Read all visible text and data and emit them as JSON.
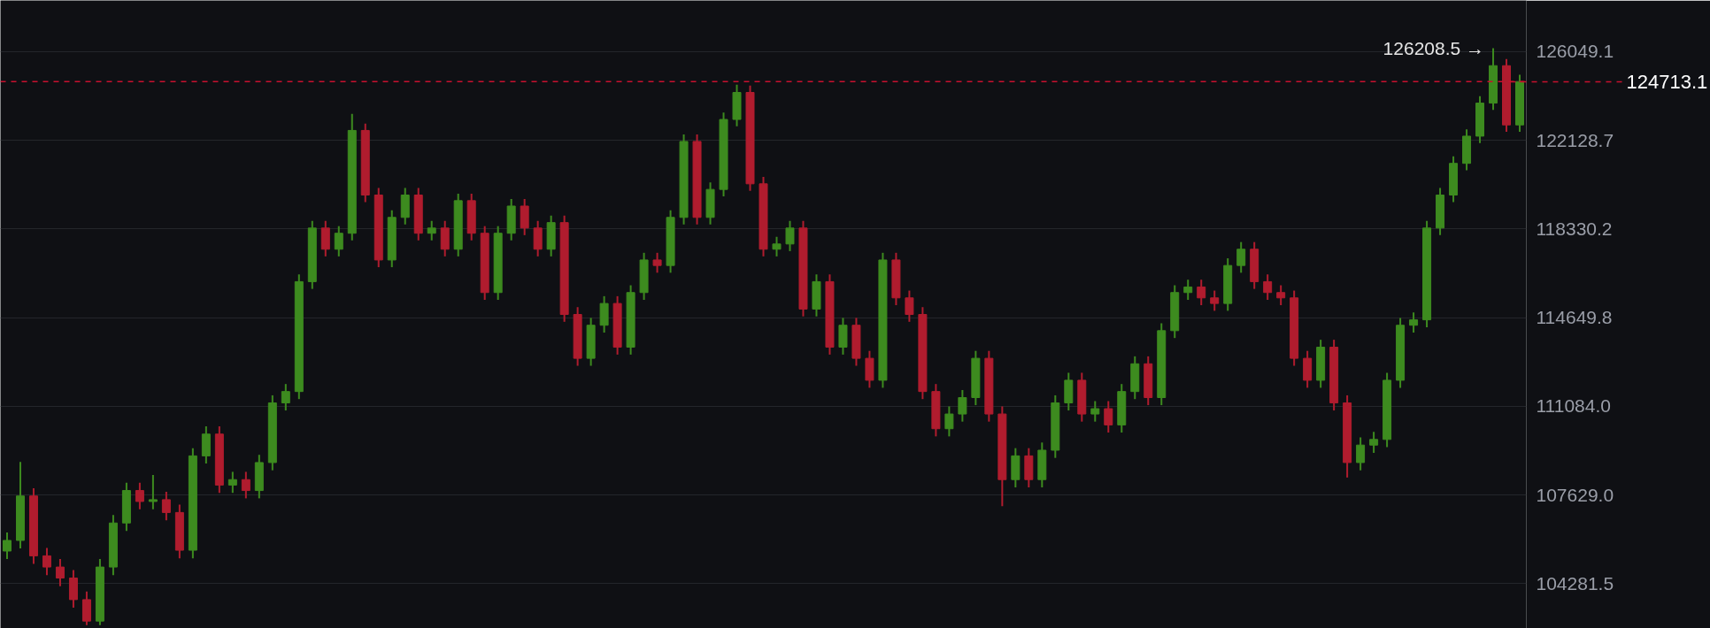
{
  "chart_data": {
    "type": "candlestick",
    "log": true,
    "grid": "y",
    "tick_labels": "y",
    "ylim": [
      102630,
      128370
    ],
    "yticks": [
      104281.5,
      {
        "value": 107629,
        "label": "107629.0"
      },
      {
        "value": 111084,
        "label": "111084.0"
      },
      114649.8,
      118330.2,
      122128.7,
      126049.1
    ],
    "ref_lines": [
      {
        "axis": "y",
        "value": 124713.1,
        "label": "124713.1",
        "color": "#c8102e",
        "line_style": "dashed"
      }
    ],
    "annotations": [
      "126208.5 →"
    ],
    "categories": [
      null,
      null,
      null,
      null,
      null,
      null,
      null,
      null,
      null,
      null,
      null,
      null,
      null,
      null,
      null,
      null,
      null,
      null,
      null,
      null,
      null,
      null,
      null,
      null,
      null,
      null,
      null,
      null,
      null,
      null,
      null,
      null,
      null,
      null,
      null,
      null,
      null,
      null,
      null,
      null,
      null,
      null,
      null,
      null,
      null,
      null,
      null,
      null,
      null,
      null,
      null,
      null,
      null,
      null,
      null,
      null,
      null,
      null,
      null,
      null,
      null,
      null,
      null,
      null,
      null,
      null,
      null,
      null,
      null,
      null,
      null,
      null,
      null,
      null,
      null,
      null,
      null,
      null,
      null,
      null,
      null,
      null,
      null,
      null,
      null,
      null,
      null,
      null,
      null,
      null,
      null,
      null,
      null,
      null,
      null,
      null,
      null,
      null,
      null,
      null,
      null,
      null,
      null,
      null,
      null,
      null,
      null,
      null,
      null,
      null,
      null,
      null,
      null,
      null,
      null
    ],
    "ohlc": [
      [
        105500,
        106200,
        105200,
        105900
      ],
      [
        105900,
        108900,
        105600,
        107590
      ],
      [
        107590,
        107890,
        105020,
        105320
      ],
      [
        105320,
        105620,
        104600,
        104900
      ],
      [
        104900,
        105200,
        104190,
        104490
      ],
      [
        104490,
        104790,
        103390,
        103690
      ],
      [
        103690,
        103990,
        102750,
        102900
      ],
      [
        102900,
        105200,
        102750,
        104900
      ],
      [
        104900,
        106860,
        104600,
        106560
      ],
      [
        106560,
        108100,
        106260,
        107800
      ],
      [
        107800,
        108100,
        107080,
        107380
      ],
      [
        107380,
        108400,
        107080,
        107450
      ],
      [
        107450,
        107750,
        106660,
        106960
      ],
      [
        106960,
        107260,
        105230,
        105530
      ],
      [
        105530,
        109440,
        105230,
        109140
      ],
      [
        109140,
        110290,
        108840,
        109990
      ],
      [
        109990,
        110290,
        107710,
        108010
      ],
      [
        108010,
        108520,
        107710,
        108220
      ],
      [
        108220,
        108520,
        107500,
        107800
      ],
      [
        107800,
        109180,
        107500,
        108880
      ],
      [
        108880,
        111520,
        108580,
        111220
      ],
      [
        111220,
        111970,
        110920,
        111670
      ],
      [
        111670,
        116430,
        111370,
        116130
      ],
      [
        116130,
        118670,
        115830,
        118370
      ],
      [
        118370,
        118670,
        117180,
        117480
      ],
      [
        117480,
        118450,
        117180,
        118150
      ],
      [
        118150,
        123280,
        117850,
        122560
      ],
      [
        122560,
        122860,
        119470,
        119770
      ],
      [
        119770,
        120070,
        116730,
        117030
      ],
      [
        117030,
        119120,
        116730,
        118820
      ],
      [
        118820,
        120070,
        118520,
        119770
      ],
      [
        119770,
        120070,
        117850,
        118150
      ],
      [
        118150,
        118670,
        117850,
        118370
      ],
      [
        118370,
        118670,
        117180,
        117480
      ],
      [
        117480,
        119830,
        117180,
        119530
      ],
      [
        119530,
        119830,
        117850,
        118150
      ],
      [
        118150,
        118450,
        115380,
        115680
      ],
      [
        115680,
        118450,
        115380,
        118150
      ],
      [
        118150,
        119600,
        117850,
        119300
      ],
      [
        119300,
        119600,
        118070,
        118370
      ],
      [
        118370,
        118670,
        117180,
        117480
      ],
      [
        117480,
        118900,
        117180,
        118600
      ],
      [
        118600,
        118900,
        114480,
        114780
      ],
      [
        114780,
        115080,
        112700,
        113000
      ],
      [
        113000,
        114640,
        112700,
        114340
      ],
      [
        114340,
        115530,
        114040,
        115230
      ],
      [
        115230,
        115530,
        113150,
        113450
      ],
      [
        113450,
        115980,
        113150,
        115680
      ],
      [
        115680,
        117330,
        115380,
        117030
      ],
      [
        117030,
        117330,
        116500,
        116800
      ],
      [
        116800,
        119120,
        116500,
        118820
      ],
      [
        118820,
        122380,
        118520,
        122080
      ],
      [
        122080,
        122380,
        118520,
        118820
      ],
      [
        118820,
        120310,
        118520,
        120010
      ],
      [
        120010,
        123340,
        119710,
        123040
      ],
      [
        123040,
        124570,
        122740,
        124230
      ],
      [
        124230,
        124530,
        119950,
        120250
      ],
      [
        120250,
        120550,
        117180,
        117480
      ],
      [
        117480,
        118000,
        117180,
        117700
      ],
      [
        117700,
        118670,
        117400,
        118370
      ],
      [
        118370,
        118670,
        114700,
        115000
      ],
      [
        115000,
        116430,
        114700,
        116130
      ],
      [
        116130,
        116430,
        113150,
        113450
      ],
      [
        113450,
        114640,
        113150,
        114340
      ],
      [
        114340,
        114640,
        112700,
        113000
      ],
      [
        113000,
        113300,
        111820,
        112120
      ],
      [
        112120,
        117330,
        111820,
        117030
      ],
      [
        117030,
        117330,
        115160,
        115460
      ],
      [
        115460,
        115760,
        114480,
        114780
      ],
      [
        114780,
        115080,
        111370,
        111670
      ],
      [
        111670,
        111970,
        109900,
        110200
      ],
      [
        110200,
        111080,
        109900,
        110780
      ],
      [
        110780,
        111730,
        110480,
        111430
      ],
      [
        111430,
        113300,
        111130,
        113000
      ],
      [
        113000,
        113300,
        110480,
        110780
      ],
      [
        110780,
        111080,
        107200,
        108220
      ],
      [
        108220,
        109440,
        107920,
        109140
      ],
      [
        109140,
        109440,
        107920,
        108220
      ],
      [
        108220,
        109660,
        107920,
        109360
      ],
      [
        109360,
        111520,
        109060,
        111220
      ],
      [
        111220,
        112420,
        110920,
        112120
      ],
      [
        112120,
        112420,
        110480,
        110780
      ],
      [
        110780,
        111290,
        110480,
        110990
      ],
      [
        110990,
        111290,
        110050,
        110350
      ],
      [
        110350,
        111970,
        110050,
        111670
      ],
      [
        111670,
        113080,
        111370,
        112780
      ],
      [
        112780,
        113080,
        111130,
        111430
      ],
      [
        111430,
        114420,
        111130,
        114120
      ],
      [
        114120,
        115980,
        113820,
        115680
      ],
      [
        115680,
        116210,
        115380,
        115910
      ],
      [
        115910,
        116210,
        115160,
        115460
      ],
      [
        115460,
        115760,
        114930,
        115230
      ],
      [
        115230,
        117100,
        114930,
        116800
      ],
      [
        116800,
        117780,
        116500,
        117480
      ],
      [
        117480,
        117780,
        115830,
        116130
      ],
      [
        116130,
        116430,
        115380,
        115680
      ],
      [
        115680,
        115980,
        115160,
        115460
      ],
      [
        115460,
        115760,
        112700,
        113000
      ],
      [
        113000,
        113300,
        111820,
        112120
      ],
      [
        112120,
        113750,
        111820,
        113450
      ],
      [
        113450,
        113750,
        110920,
        111220
      ],
      [
        111220,
        111520,
        108300,
        108880
      ],
      [
        108880,
        109860,
        108580,
        109560
      ],
      [
        109560,
        110080,
        109260,
        109780
      ],
      [
        109780,
        112420,
        109480,
        112120
      ],
      [
        112120,
        114640,
        111820,
        114340
      ],
      [
        114340,
        114860,
        114040,
        114560
      ],
      [
        114560,
        118670,
        114260,
        118370
      ],
      [
        118370,
        120070,
        118070,
        119770
      ],
      [
        119770,
        121430,
        119470,
        121130
      ],
      [
        121130,
        122610,
        120830,
        122310
      ],
      [
        122310,
        124060,
        122010,
        123760
      ],
      [
        123760,
        126208.5,
        123460,
        125420
      ],
      [
        125420,
        125720,
        122500,
        122800
      ],
      [
        122800,
        125013.1,
        122500,
        124713.1
      ]
    ],
    "colors": [
      "#3d8b1f",
      "#3d8b1f",
      "#b01c2e",
      "#b01c2e",
      "#b01c2e",
      "#b01c2e",
      "#b01c2e",
      "#3d8b1f",
      "#3d8b1f",
      "#3d8b1f",
      "#b01c2e",
      "#3d8b1f",
      "#b01c2e",
      "#b01c2e",
      "#3d8b1f",
      "#3d8b1f",
      "#b01c2e",
      "#3d8b1f",
      "#b01c2e",
      "#3d8b1f",
      "#3d8b1f",
      "#3d8b1f",
      "#3d8b1f",
      "#3d8b1f",
      "#b01c2e",
      "#3d8b1f",
      "#3d8b1f",
      "#b01c2e",
      "#b01c2e",
      "#3d8b1f",
      "#3d8b1f",
      "#b01c2e",
      "#3d8b1f",
      "#b01c2e",
      "#3d8b1f",
      "#b01c2e",
      "#b01c2e",
      "#3d8b1f",
      "#3d8b1f",
      "#b01c2e",
      "#b01c2e",
      "#3d8b1f",
      "#b01c2e",
      "#b01c2e",
      "#3d8b1f",
      "#3d8b1f",
      "#b01c2e",
      "#3d8b1f",
      "#3d8b1f",
      "#b01c2e",
      "#3d8b1f",
      "#3d8b1f",
      "#b01c2e",
      "#3d8b1f",
      "#3d8b1f",
      "#3d8b1f",
      "#b01c2e",
      "#b01c2e",
      "#3d8b1f",
      "#3d8b1f",
      "#b01c2e",
      "#3d8b1f",
      "#b01c2e",
      "#3d8b1f",
      "#b01c2e",
      "#b01c2e",
      "#3d8b1f",
      "#b01c2e",
      "#b01c2e",
      "#b01c2e",
      "#b01c2e",
      "#3d8b1f",
      "#3d8b1f",
      "#3d8b1f",
      "#b01c2e",
      "#b01c2e",
      "#3d8b1f",
      "#b01c2e",
      "#3d8b1f",
      "#3d8b1f",
      "#3d8b1f",
      "#b01c2e",
      "#3d8b1f",
      "#b01c2e",
      "#3d8b1f",
      "#3d8b1f",
      "#b01c2e",
      "#3d8b1f",
      "#3d8b1f",
      "#3d8b1f",
      "#b01c2e",
      "#b01c2e",
      "#3d8b1f",
      "#3d8b1f",
      "#b01c2e",
      "#b01c2e",
      "#b01c2e",
      "#b01c2e",
      "#b01c2e",
      "#3d8b1f",
      "#b01c2e",
      "#b01c2e",
      "#3d8b1f",
      "#3d8b1f",
      "#3d8b1f",
      "#3d8b1f",
      "#3d8b1f",
      "#3d8b1f",
      "#3d8b1f",
      "#3d8b1f",
      "#3d8b1f",
      "#3d8b1f",
      "#3d8b1f",
      "#b01c2e",
      "#3d8b1f"
    ]
  }
}
